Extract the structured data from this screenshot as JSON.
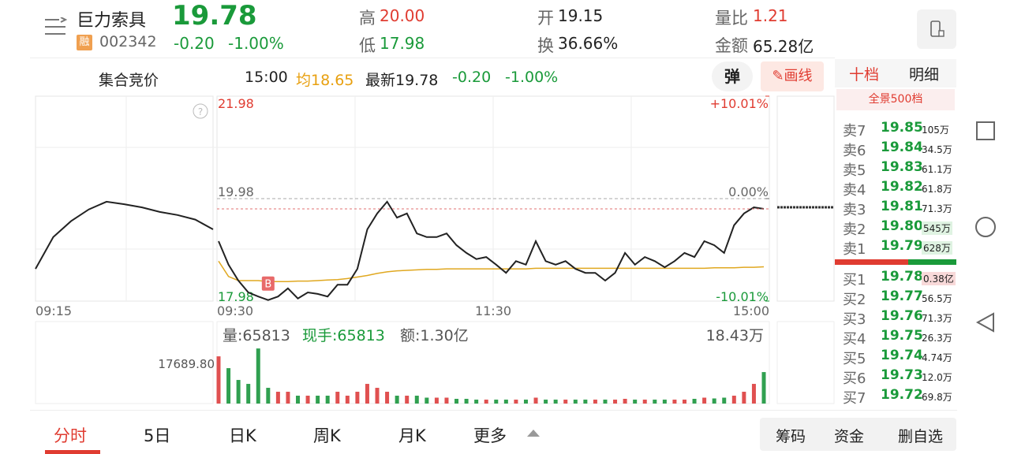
{
  "header": {
    "name": "巨力索具",
    "price": "19.78",
    "badge": "融",
    "code": "002342",
    "change": "-0.20",
    "change_pct": "-1.00%",
    "stats": [
      {
        "label": "高",
        "value": "20.00"
      },
      {
        "label": "低",
        "value": "17.98"
      },
      {
        "label": "开",
        "value": "19.15"
      },
      {
        "label": "换",
        "value": "36.66%"
      },
      {
        "label": "量比",
        "value": "1.21"
      },
      {
        "label": "金额",
        "value": "65.28亿"
      }
    ]
  },
  "info_bar": {
    "title": "集合竞价",
    "time": "15:00",
    "avg": "均18.65",
    "latest": "最新19.78",
    "change": "-0.20",
    "change_pct": "-1.00%",
    "buttons": [
      "弹",
      "画线"
    ]
  },
  "book": {
    "tabs": [
      "十档",
      "明细"
    ],
    "subtitle": "全景500档",
    "sells": [
      [
        "卖7",
        "19.85",
        "105万"
      ],
      [
        "卖6",
        "19.84",
        "34.5万"
      ],
      [
        "卖5",
        "19.83",
        "61.1万"
      ],
      [
        "卖4",
        "19.82",
        "61.8万"
      ],
      [
        "卖3",
        "19.81",
        "71.3万"
      ],
      [
        "卖2",
        "19.80",
        "545万"
      ],
      [
        "卖1",
        "19.79",
        "628万"
      ]
    ],
    "buys": [
      [
        "买1",
        "19.78",
        "0.38亿"
      ],
      [
        "买2",
        "19.77",
        "56.5万"
      ],
      [
        "买3",
        "19.76",
        "71.3万"
      ],
      [
        "买4",
        "19.75",
        "26.3万"
      ],
      [
        "买5",
        "19.74",
        "4.74万"
      ],
      [
        "买6",
        "19.73",
        "12.0万"
      ],
      [
        "买7",
        "19.72",
        "69.8万"
      ]
    ]
  },
  "chart": {
    "type": "line",
    "ylim": [
      17.98,
      21.98
    ],
    "price_ticks": [
      21.98,
      19.98,
      17.98
    ],
    "pct_ticks": [
      {
        "value": 21.98,
        "label": "+10.01%"
      },
      {
        "value": 19.98,
        "label": "0.00%"
      },
      {
        "value": 17.98,
        "label": "-10.01%"
      }
    ],
    "time_labels": [
      "09:15",
      "09:30",
      "11:30",
      "15:00"
    ],
    "auction": [
      18.61,
      19.23,
      19.54,
      19.77,
      19.92,
      19.87,
      19.81,
      19.72,
      19.66,
      19.57,
      19.38
    ],
    "price": [
      19.15,
      18.69,
      18.38,
      18.15,
      18.07,
      18.0,
      18.07,
      18.23,
      18.03,
      18.15,
      18.12,
      18.07,
      18.3,
      18.3,
      18.61,
      19.38,
      19.69,
      19.92,
      19.61,
      19.69,
      19.3,
      19.23,
      19.23,
      19.3,
      19.07,
      18.92,
      18.8,
      18.84,
      18.69,
      18.53,
      18.76,
      18.69,
      19.15,
      18.76,
      18.69,
      18.76,
      18.61,
      18.53,
      18.53,
      18.38,
      18.53,
      18.92,
      18.69,
      18.84,
      18.76,
      18.64,
      18.76,
      18.92,
      18.84,
      19.15,
      19.07,
      18.92,
      19.46,
      19.69,
      19.81,
      19.78
    ],
    "avg": [
      18.76,
      18.46,
      18.38,
      18.38,
      18.38,
      18.36,
      18.36,
      18.36,
      18.37,
      18.37,
      18.38,
      18.39,
      18.4,
      18.42,
      18.45,
      18.48,
      18.52,
      18.55,
      18.57,
      18.58,
      18.59,
      18.6,
      18.6,
      18.61,
      18.61,
      18.61,
      18.61,
      18.61,
      18.61,
      18.61,
      18.61,
      18.61,
      18.62,
      18.62,
      18.62,
      18.62,
      18.62,
      18.62,
      18.62,
      18.62,
      18.62,
      18.62,
      18.62,
      18.62,
      18.62,
      18.62,
      18.62,
      18.62,
      18.62,
      18.62,
      18.63,
      18.63,
      18.63,
      18.64,
      18.64,
      18.65
    ],
    "marker": "B",
    "volume_ylim": [
      0,
      18.43
    ],
    "volume": [
      12,
      9,
      6,
      5,
      14,
      4,
      3,
      3,
      2,
      2,
      2,
      2,
      3,
      2,
      3,
      5,
      4,
      3,
      2,
      2,
      2,
      1.5,
      1.5,
      1.5,
      1.2,
      1.2,
      1,
      1,
      1,
      1,
      1,
      1,
      1.5,
      1,
      1,
      1,
      1,
      1,
      1,
      1,
      1,
      1.2,
      1,
      1,
      1,
      1,
      1,
      1,
      1.2,
      1.5,
      1.3,
      1.5,
      2,
      3,
      5,
      8
    ],
    "volume_labels": {
      "vol": "量:65813",
      "hand": "现手:65813",
      "amount": "额:1.30亿",
      "max": "18.43万",
      "auction": "17689.80"
    }
  },
  "footer": {
    "tabs": [
      "分时",
      "5日",
      "日K",
      "周K",
      "月K",
      "更多"
    ],
    "buttons": [
      "筹码",
      "资金",
      "删自选"
    ]
  }
}
